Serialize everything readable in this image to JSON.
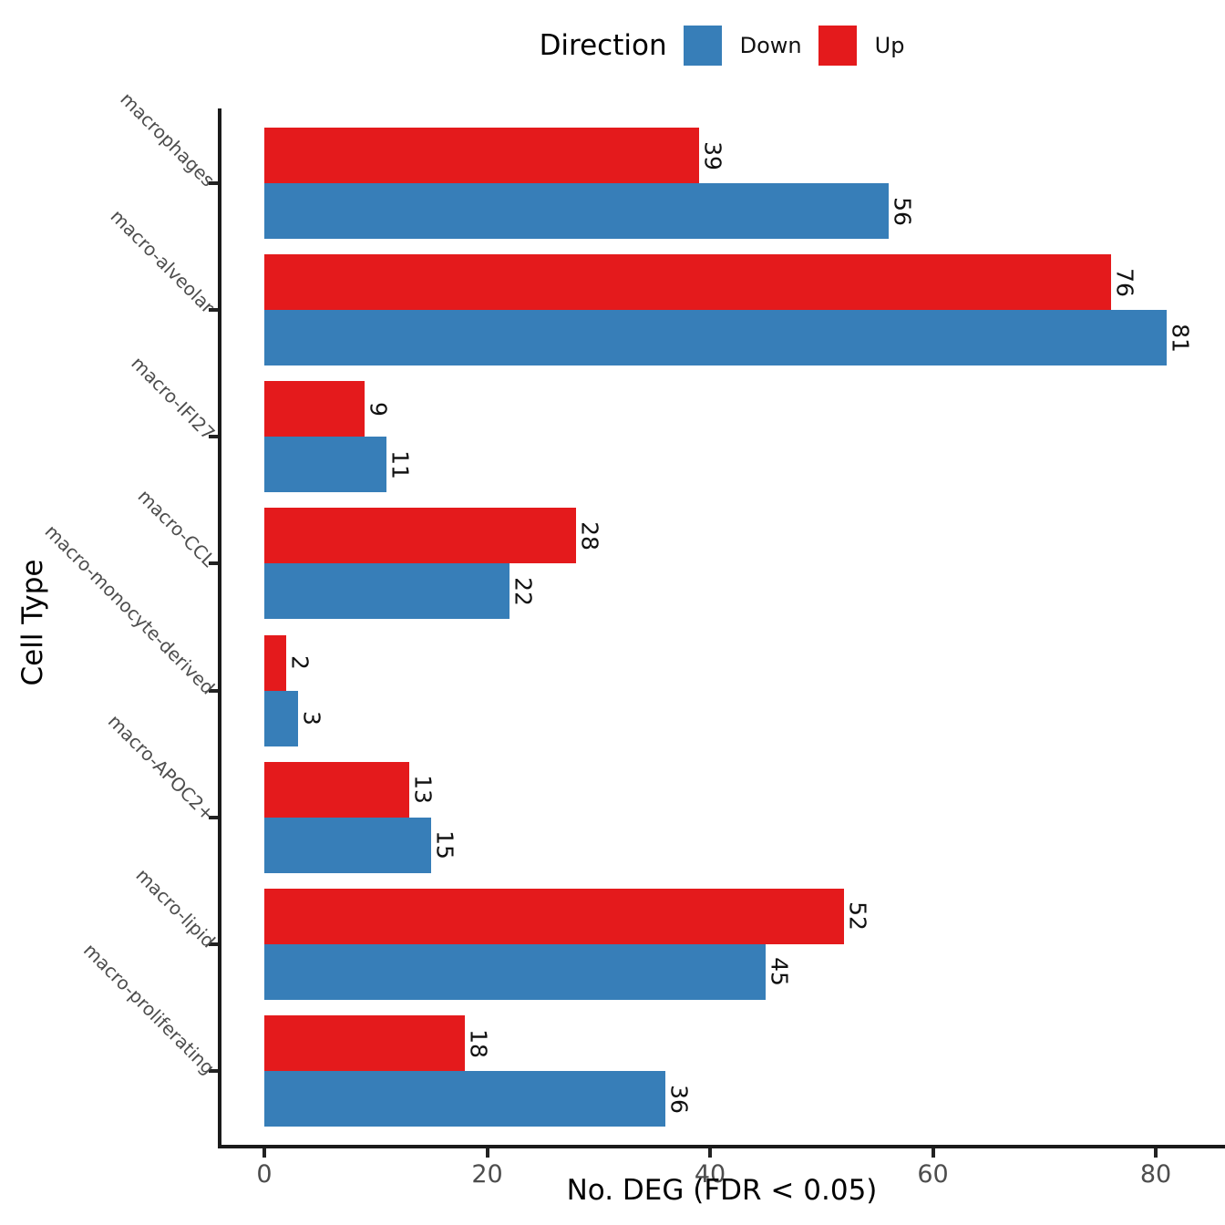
{
  "legend": {
    "title": "Direction",
    "items": [
      {
        "label": "Down",
        "color": "#377EB8"
      },
      {
        "label": "Up",
        "color": "#E41A1C"
      }
    ]
  },
  "axes": {
    "x_title": "No. DEG (FDR < 0.05)",
    "y_title": "Cell Type"
  },
  "chart_data": {
    "type": "bar",
    "orientation": "horizontal",
    "title": "",
    "xlabel": "No. DEG (FDR < 0.05)",
    "ylabel": "Cell Type",
    "xlim": [
      0,
      86
    ],
    "x_ticks": [
      0,
      20,
      40,
      60,
      80
    ],
    "grid": false,
    "legend_position": "top",
    "legend_title": "Direction",
    "bar_value_labels": true,
    "categories": [
      "macrophages",
      "macro-alveolar",
      "macro-IFI27",
      "macro-CCL",
      "macro-monocyte-derived",
      "macro-APOC2+",
      "macro-lipid",
      "macro-proliferating"
    ],
    "series": [
      {
        "name": "Up",
        "color": "#E41A1C",
        "values": [
          39,
          76,
          9,
          28,
          2,
          13,
          52,
          18
        ]
      },
      {
        "name": "Down",
        "color": "#377EB8",
        "values": [
          56,
          81,
          11,
          22,
          3,
          15,
          45,
          36
        ]
      }
    ]
  }
}
